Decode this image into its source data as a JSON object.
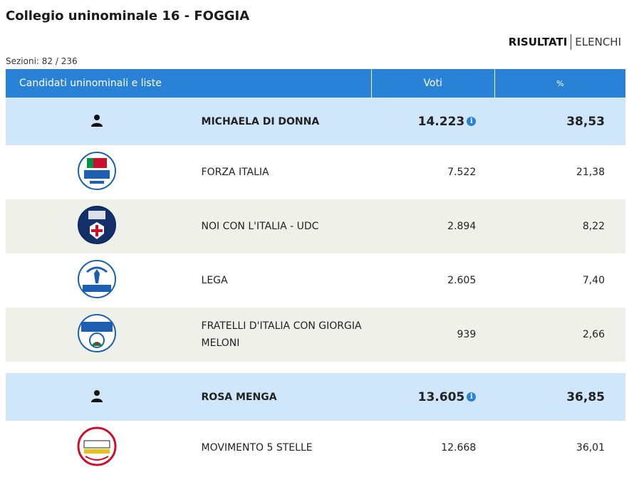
{
  "page": {
    "title": "Collegio uninominale 16 - FOGGIA",
    "view_tabs": {
      "active": "RISULTATI",
      "inactive": "ELENCHI"
    },
    "sections": "Sezioni: 82 / 236"
  },
  "table": {
    "headers": {
      "candidates": "Candidati uninominali e liste",
      "votes": "Voti",
      "pct": "%"
    },
    "groups": [
      {
        "candidate": {
          "name": "MICHAELA DI DONNA",
          "votes": "14.223",
          "pct": "38,53",
          "icon": "person-icon"
        },
        "lists": [
          {
            "name": "FORZA ITALIA",
            "votes": "7.522",
            "pct": "21,38",
            "logo": "forza-italia-logo"
          },
          {
            "name": "NOI CON L'ITALIA - UDC",
            "votes": "2.894",
            "pct": "8,22",
            "logo": "noi-con-italia-logo"
          },
          {
            "name": "LEGA",
            "votes": "2.605",
            "pct": "7,40",
            "logo": "lega-logo"
          },
          {
            "name": "FRATELLI D'ITALIA CON GIORGIA MELONI",
            "votes": "939",
            "pct": "2,66",
            "logo": "fratelli-italia-logo"
          }
        ]
      },
      {
        "candidate": {
          "name": "ROSA MENGA",
          "votes": "13.605",
          "pct": "36,85",
          "icon": "person-icon"
        },
        "lists": [
          {
            "name": "MOVIMENTO 5 STELLE",
            "votes": "12.668",
            "pct": "36,01",
            "logo": "movimento-5-stelle-logo"
          }
        ]
      }
    ]
  },
  "colors": {
    "header_blue": "#2a82d6",
    "candidate_row": "#cfe6fb",
    "alt_row": "#f0f0eb"
  }
}
